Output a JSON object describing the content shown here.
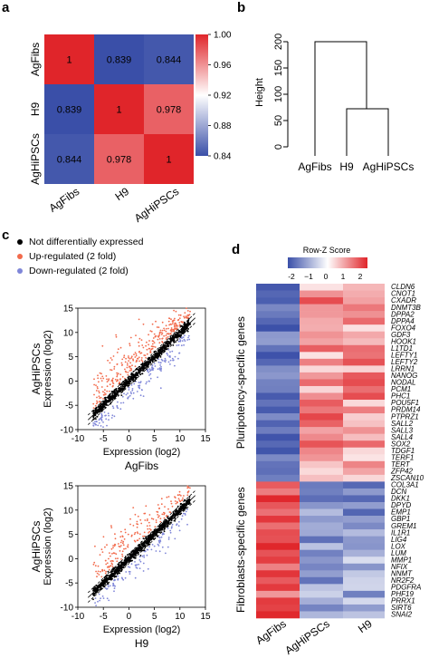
{
  "panels": {
    "a": {
      "letter": "a",
      "row_labels": [
        "AgFibs",
        "H9",
        "AgHiPSCs"
      ],
      "col_labels": [
        "AgFibs",
        "H9",
        "AgHiPSCs"
      ],
      "matrix": [
        [
          "1",
          "0.839",
          "0.844"
        ],
        [
          "0.839",
          "1",
          "0.978"
        ],
        [
          "0.844",
          "0.978",
          "1"
        ]
      ],
      "colorbar_ticks": [
        "1.00",
        "0.96",
        "0.92",
        "0.88",
        "0.84"
      ],
      "colorbar_range": [
        0.84,
        1.0
      ],
      "colors": {
        "low": "#3a4fa8",
        "mid": "#ffffff",
        "high": "#e0252a"
      }
    },
    "b": {
      "letter": "b",
      "ylabel": "Height",
      "yticks": [
        "0",
        "50",
        "100",
        "150",
        "200"
      ],
      "leaves": [
        "AgFibs",
        "H9",
        "AgHiPSCs"
      ]
    },
    "c": {
      "letter": "c",
      "legend": [
        {
          "label": "Not differentially expressed",
          "color": "#000000"
        },
        {
          "label": "Up-regulated (2 fold)",
          "color": "#f26b4c"
        },
        {
          "label": "Down-regulated (2 fold)",
          "color": "#7f86d8"
        }
      ],
      "plot1": {
        "ylabel_top": "AgHiPSCs",
        "ylabel_bottom": "Expression (log2)",
        "xlabel_top": "Expression (log2)",
        "xlabel_bottom": "AgFibs",
        "yticks": [
          "15",
          "10",
          "5",
          "0",
          "-5",
          "-10"
        ],
        "xticks": [
          "-10",
          "-5",
          "0",
          "5",
          "10",
          "15"
        ]
      },
      "plot2": {
        "ylabel_top": "AgHiPSCs",
        "ylabel_bottom": "Expression (log2)",
        "xlabel_top": "Expression (log2)",
        "xlabel_bottom": "H9",
        "yticks": [
          "15",
          "10",
          "5",
          "0",
          "-5",
          "-10"
        ],
        "xticks": [
          "-10",
          "-5",
          "0",
          "5",
          "10",
          "15"
        ]
      }
    },
    "d": {
      "letter": "d",
      "scale_title": "Row-Z Score",
      "scale_ticks": [
        "-2",
        "−1",
        "0",
        "1",
        "2"
      ],
      "groups": [
        "Pluripotency-specific genes",
        "Fibroblasts-specific genes"
      ],
      "columns": [
        "AgFibs",
        "AgHiPSCs",
        "H9"
      ],
      "genes": [
        "CLDN6",
        "CNOT1",
        "CXADR",
        "DNMT3B",
        "DPPA2",
        "DPPA4",
        "FOXO4",
        "GDF3",
        "HOOK1",
        "L1TD1",
        "LEFTY1",
        "LEFTY2",
        "LRRN1",
        "NANOG",
        "NODAL",
        "PCM1",
        "PHC1",
        "POU5F1",
        "PRDM14",
        "PTPRZ1",
        "SALL2",
        "SALL3",
        "SALL4",
        "SOX2",
        "TDGF1",
        "TERF1",
        "TERT",
        "ZFP42",
        "ZSCAN10",
        "COL3A1",
        "DCN",
        "DKK1",
        "DPYD",
        "EMP1",
        "GBP1",
        "GREM1",
        "IL1R1",
        "LIG4",
        "LOX",
        "LUM",
        "MMP1",
        "NFIX",
        "NNMT",
        "NR2F2",
        "PDGFRA",
        "PHF19",
        "PRRX1",
        "SIRT6",
        "SNAI2"
      ],
      "pluripotency_count": 29
    }
  }
}
